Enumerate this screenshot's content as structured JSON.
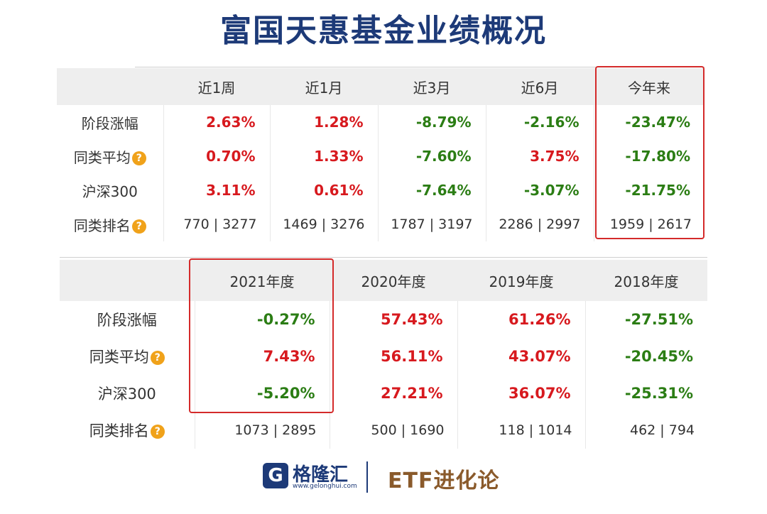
{
  "title": "富国天惠基金业绩概况",
  "table1": {
    "headers": [
      "",
      "近1周",
      "近1月",
      "近3月",
      "近6月",
      "今年来"
    ],
    "rows": [
      {
        "label": "阶段涨幅",
        "info": false,
        "values": [
          "2.63%",
          "1.28%",
          "-8.79%",
          "-2.16%",
          "-23.47%"
        ],
        "tones": [
          "pos",
          "pos",
          "neg",
          "neg",
          "neg"
        ]
      },
      {
        "label": "同类平均",
        "info": true,
        "values": [
          "0.70%",
          "1.33%",
          "-7.60%",
          "3.75%",
          "-17.80%"
        ],
        "tones": [
          "pos",
          "pos",
          "neg",
          "pos",
          "neg"
        ]
      },
      {
        "label": "沪深300",
        "info": false,
        "values": [
          "3.11%",
          "0.61%",
          "-7.64%",
          "-3.07%",
          "-21.75%"
        ],
        "tones": [
          "pos",
          "pos",
          "neg",
          "neg",
          "neg"
        ]
      },
      {
        "label": "同类排名",
        "info": true,
        "values": [
          "770 | 3277",
          "1469 | 3276",
          "1787 | 3197",
          "2286 | 2997",
          "1959 | 2617"
        ],
        "tones": [
          "rank",
          "rank",
          "rank",
          "rank",
          "rank"
        ]
      }
    ]
  },
  "table2": {
    "headers": [
      "",
      "2021年度",
      "2020年度",
      "2019年度",
      "2018年度"
    ],
    "rows": [
      {
        "label": "阶段涨幅",
        "info": false,
        "values": [
          "-0.27%",
          "57.43%",
          "61.26%",
          "-27.51%"
        ],
        "tones": [
          "neg",
          "pos",
          "pos",
          "neg"
        ]
      },
      {
        "label": "同类平均",
        "info": true,
        "values": [
          "7.43%",
          "56.11%",
          "43.07%",
          "-20.45%"
        ],
        "tones": [
          "pos",
          "pos",
          "pos",
          "neg"
        ]
      },
      {
        "label": "沪深300",
        "info": false,
        "values": [
          "-5.20%",
          "27.21%",
          "36.07%",
          "-25.31%"
        ],
        "tones": [
          "neg",
          "pos",
          "pos",
          "neg"
        ]
      },
      {
        "label": "同类排名",
        "info": true,
        "values": [
          "1073 | 2895",
          "500 | 1690",
          "118 | 1014",
          "462 | 794"
        ],
        "tones": [
          "rank",
          "rank",
          "rank",
          "rank"
        ]
      }
    ]
  },
  "info_icon_glyph": "?",
  "footer": {
    "logo_mark": "G",
    "logo_name": "格隆汇",
    "logo_url": "www.gelonghui.com",
    "brand": "ETF进化论"
  },
  "colors": {
    "title": "#1d3a78",
    "positive": "#d7191e",
    "negative": "#2b7d14",
    "highlight": "#d42a2a",
    "brand": "#8a5a2b"
  }
}
